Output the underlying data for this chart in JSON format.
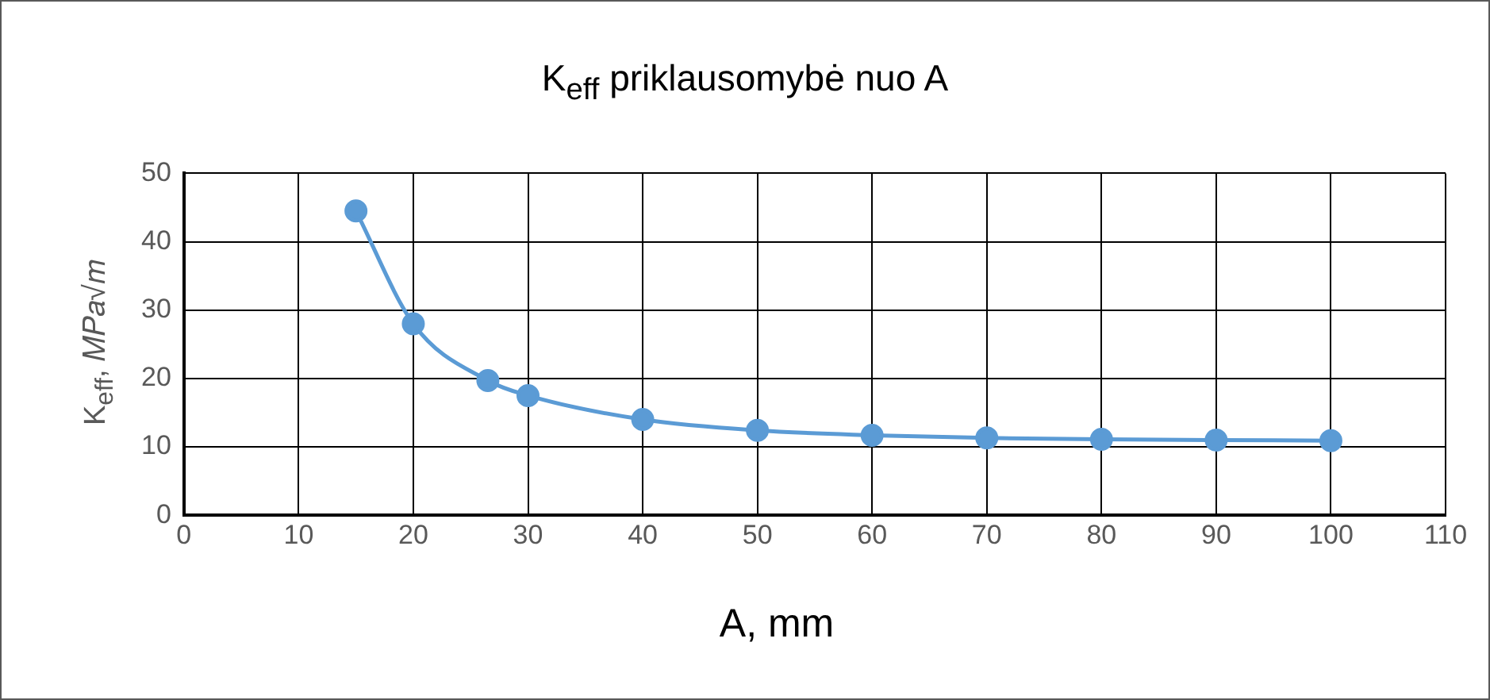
{
  "chart_data": {
    "type": "line",
    "title": "K$_{eff}$ priklausomybė nuo A",
    "xlabel": "A, mm",
    "ylabel": "K$_{eff}$, 𝑀𝑃𝑎√𝑚",
    "x": [
      15,
      20,
      26.5,
      30,
      40,
      50,
      60,
      70,
      80,
      90,
      100
    ],
    "series": [
      {
        "color": "#5b9bd5",
        "values": [
          44.5,
          28,
          19.7,
          17.5,
          14,
          12.4,
          11.7,
          11.3,
          11.1,
          11,
          10.9
        ]
      }
    ],
    "xlim": [
      0,
      110
    ],
    "xticks": [
      0,
      10,
      20,
      30,
      40,
      50,
      60,
      70,
      80,
      90,
      100,
      110
    ],
    "ylim": [
      0,
      50
    ],
    "yticks": [
      0,
      10,
      20,
      30,
      40,
      50
    ],
    "grid": true,
    "legend": false,
    "marker": "circle",
    "line_style": "solid"
  }
}
